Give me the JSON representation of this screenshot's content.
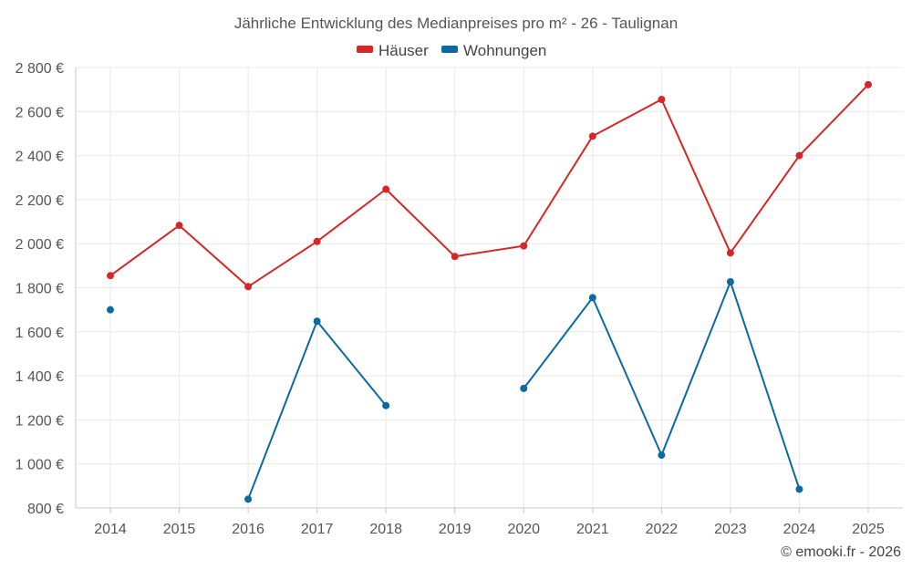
{
  "chart_data": {
    "type": "line",
    "title": "Jährliche Entwicklung des Medianpreises pro m² - 26 - Taulignan",
    "xlabel": "",
    "ylabel": "",
    "categories": [
      "2014",
      "2015",
      "2016",
      "2017",
      "2018",
      "2019",
      "2020",
      "2021",
      "2022",
      "2023",
      "2024",
      "2025"
    ],
    "ylim": [
      800,
      2800
    ],
    "y_ticks": [
      800,
      1000,
      1200,
      1400,
      1600,
      1800,
      2000,
      2200,
      2400,
      2600,
      2800
    ],
    "y_tick_labels": [
      "800 €",
      "1 000 €",
      "1 200 €",
      "1 400 €",
      "1 600 €",
      "1 800 €",
      "2 000 €",
      "2 200 €",
      "2 400 €",
      "2 600 €",
      "2 800 €"
    ],
    "grid": true,
    "legend_position": "top-center",
    "series": [
      {
        "name": "Häuser",
        "color": "#d62728",
        "values": [
          1855,
          2083,
          1805,
          2010,
          2247,
          1942,
          1990,
          2488,
          2655,
          1958,
          2400,
          2722
        ]
      },
      {
        "name": "Wohnungen",
        "color": "#0a6aa1",
        "values": [
          1700,
          null,
          840,
          1648,
          1265,
          null,
          1343,
          1755,
          1040,
          1827,
          885,
          null
        ]
      }
    ]
  },
  "credit": "© emooki.fr - 2026"
}
